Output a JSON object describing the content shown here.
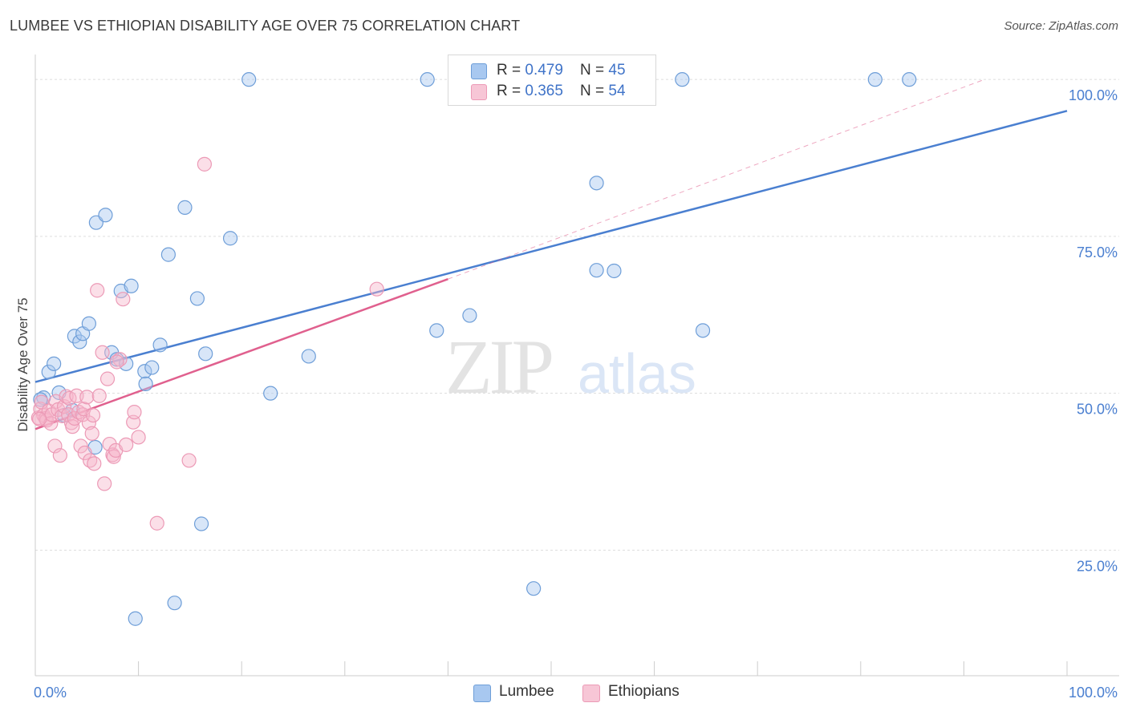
{
  "title": "LUMBEE VS ETHIOPIAN DISABILITY AGE OVER 75 CORRELATION CHART",
  "source": "Source: ZipAtlas.com",
  "watermark": {
    "zip": "ZIP",
    "atlas": "atlas"
  },
  "legend": {
    "rows": [
      {
        "r_label": "R = ",
        "r_value": "0.479",
        "n_label": "N = ",
        "n_value": "45",
        "color": "#a8c8f0"
      },
      {
        "r_label": "R = ",
        "r_value": "0.365",
        "n_label": "N = ",
        "n_value": "54",
        "color": "#f7b7cc"
      }
    ]
  },
  "bottom_legend": [
    {
      "label": "Lumbee",
      "color": "#a8c8f0"
    },
    {
      "label": "Ethiopians",
      "color": "#f7b7cc"
    }
  ],
  "chart_data": {
    "type": "scatter",
    "title": "LUMBEE VS ETHIOPIAN DISABILITY AGE OVER 75 CORRELATION CHART",
    "xlabel": "",
    "ylabel": "Disability Age Over 75",
    "xlim": [
      0,
      100
    ],
    "ylim": [
      5,
      105
    ],
    "x_tick_labels": [
      {
        "value": 0,
        "label": "0.0%"
      },
      {
        "value": 100,
        "label": "100.0%"
      }
    ],
    "y_tick_labels": [
      {
        "value": 25,
        "label": "25.0%"
      },
      {
        "value": 50,
        "label": "50.0%"
      },
      {
        "value": 75,
        "label": "75.0%"
      },
      {
        "value": 100,
        "label": "100.0%"
      }
    ],
    "grid": true,
    "legend_position": "top-center",
    "series": [
      {
        "name": "Lumbee",
        "color": "#4a7fd0",
        "fill": "#a8c8f0",
        "r": 0.479,
        "n": 45,
        "trend": {
          "x": [
            0,
            100
          ],
          "y": [
            51.8,
            95.0
          ]
        },
        "points": [
          [
            0.8,
            49.3
          ],
          [
            1.3,
            53.4
          ],
          [
            1.8,
            54.7
          ],
          [
            2.3,
            50.1
          ],
          [
            2.8,
            46.5
          ],
          [
            3.6,
            47.3
          ],
          [
            3.8,
            59.1
          ],
          [
            4.3,
            58.2
          ],
          [
            4.6,
            59.5
          ],
          [
            5.2,
            61.1
          ],
          [
            5.8,
            41.4
          ],
          [
            5.9,
            77.2
          ],
          [
            6.8,
            78.4
          ],
          [
            7.4,
            56.5
          ],
          [
            7.9,
            55.4
          ],
          [
            8.3,
            66.3
          ],
          [
            8.8,
            54.7
          ],
          [
            9.3,
            67.1
          ],
          [
            9.7,
            14.1
          ],
          [
            10.6,
            53.5
          ],
          [
            10.7,
            51.5
          ],
          [
            11.3,
            54.1
          ],
          [
            12.1,
            57.7
          ],
          [
            12.9,
            72.1
          ],
          [
            13.5,
            16.6
          ],
          [
            14.5,
            79.6
          ],
          [
            15.7,
            65.1
          ],
          [
            16.1,
            29.2
          ],
          [
            16.5,
            56.3
          ],
          [
            18.9,
            74.7
          ],
          [
            20.7,
            100.0
          ],
          [
            22.8,
            50.0
          ],
          [
            26.5,
            55.9
          ],
          [
            38.0,
            100.0
          ],
          [
            38.9,
            60.0
          ],
          [
            42.1,
            62.4
          ],
          [
            48.3,
            18.9
          ],
          [
            54.4,
            83.5
          ],
          [
            54.4,
            69.6
          ],
          [
            56.1,
            69.5
          ],
          [
            62.7,
            100.0
          ],
          [
            64.7,
            60.0
          ],
          [
            81.4,
            100.0
          ],
          [
            84.7,
            100.0
          ],
          [
            0.5,
            49.0
          ]
        ]
      },
      {
        "name": "Ethiopians",
        "color": "#e0608e",
        "fill": "#f7b7cc",
        "r": 0.365,
        "n": 54,
        "trend": {
          "x": [
            0,
            40
          ],
          "y": [
            44.3,
            68.2
          ]
        },
        "trend_extension": {
          "x": [
            40,
            92
          ],
          "y": [
            68.2,
            100.0
          ]
        },
        "points": [
          [
            0.3,
            46.1
          ],
          [
            0.5,
            47.5
          ],
          [
            0.6,
            48.6
          ],
          [
            0.8,
            46.5
          ],
          [
            1.0,
            46.0
          ],
          [
            1.1,
            45.7
          ],
          [
            1.3,
            47.2
          ],
          [
            1.5,
            45.2
          ],
          [
            1.6,
            46.6
          ],
          [
            1.9,
            41.6
          ],
          [
            2.0,
            48.7
          ],
          [
            2.2,
            47.4
          ],
          [
            2.4,
            40.1
          ],
          [
            2.6,
            46.4
          ],
          [
            2.8,
            47.9
          ],
          [
            3.0,
            49.5
          ],
          [
            3.2,
            46.6
          ],
          [
            3.3,
            49.2
          ],
          [
            3.5,
            45.3
          ],
          [
            3.6,
            44.7
          ],
          [
            3.8,
            46.0
          ],
          [
            4.0,
            49.6
          ],
          [
            4.2,
            47.0
          ],
          [
            4.4,
            41.6
          ],
          [
            4.6,
            46.6
          ],
          [
            4.7,
            47.5
          ],
          [
            4.8,
            40.5
          ],
          [
            5.0,
            49.4
          ],
          [
            5.2,
            45.3
          ],
          [
            5.3,
            39.3
          ],
          [
            5.5,
            43.6
          ],
          [
            5.6,
            46.5
          ],
          [
            5.7,
            38.8
          ],
          [
            6.0,
            66.4
          ],
          [
            6.2,
            49.6
          ],
          [
            6.5,
            56.5
          ],
          [
            6.7,
            35.6
          ],
          [
            7.0,
            52.3
          ],
          [
            7.2,
            41.9
          ],
          [
            7.5,
            40.2
          ],
          [
            7.6,
            39.9
          ],
          [
            7.8,
            40.9
          ],
          [
            8.2,
            55.4
          ],
          [
            8.5,
            65.0
          ],
          [
            8.8,
            41.8
          ],
          [
            9.5,
            45.4
          ],
          [
            9.6,
            47.0
          ],
          [
            10.0,
            43.0
          ],
          [
            11.8,
            29.3
          ],
          [
            14.9,
            39.3
          ],
          [
            16.4,
            86.5
          ],
          [
            33.1,
            66.6
          ],
          [
            0.4,
            45.9
          ],
          [
            7.9,
            55.0
          ]
        ]
      }
    ]
  }
}
